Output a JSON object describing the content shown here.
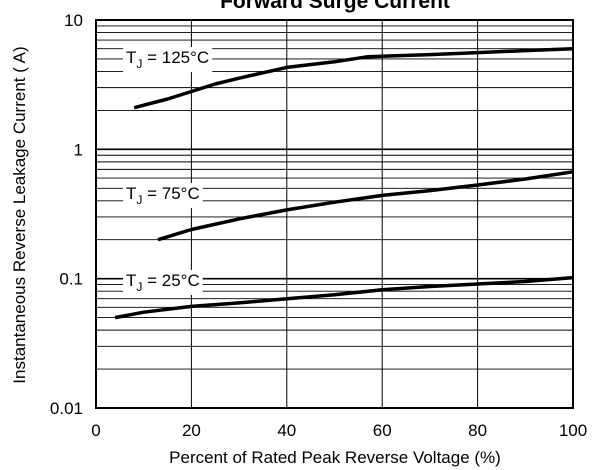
{
  "chart_data": {
    "type": "line",
    "title": "Forward Surge Current",
    "xlabel": "Percent of Rated Peak Reverse Voltage (%)",
    "ylabel": "Instantaneous Reverse Leakage Current ( A)",
    "xlim": [
      0,
      100
    ],
    "ylim": [
      0.01,
      10
    ],
    "yscale": "log",
    "grid": true,
    "x_ticks": [
      "0",
      "20",
      "40",
      "60",
      "80",
      "100"
    ],
    "y_ticks": [
      "0.01",
      "0.1",
      "1",
      "10"
    ],
    "series": [
      {
        "name_main": "T",
        "name_sub": "J",
        "name_rest": " = 125°C",
        "x": [
          8,
          15,
          20,
          25,
          30,
          40,
          50,
          57,
          70,
          80,
          90,
          100
        ],
        "y": [
          2.1,
          2.45,
          2.8,
          3.2,
          3.55,
          4.3,
          4.75,
          5.2,
          5.4,
          5.6,
          5.8,
          6.0
        ]
      },
      {
        "name_main": "T",
        "name_sub": "J",
        "name_rest": " = 75°C",
        "x": [
          13,
          20,
          30,
          40,
          50,
          60,
          70,
          80,
          90,
          100
        ],
        "y": [
          0.2,
          0.24,
          0.29,
          0.34,
          0.39,
          0.44,
          0.48,
          0.53,
          0.59,
          0.67
        ]
      },
      {
        "name_main": "T",
        "name_sub": "J",
        "name_rest": " = 25°C",
        "x": [
          4,
          10,
          20,
          30,
          40,
          50,
          60,
          70,
          80,
          90,
          100
        ],
        "y": [
          0.05,
          0.055,
          0.061,
          0.065,
          0.07,
          0.075,
          0.082,
          0.087,
          0.091,
          0.095,
          0.102
        ]
      }
    ]
  }
}
